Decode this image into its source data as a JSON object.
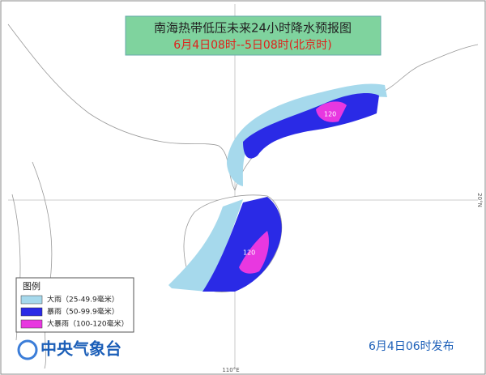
{
  "header": {
    "title": "南海热带低压未来24小时降水预报图",
    "subtitle": "6月4日08时--5日08时(北京时)"
  },
  "legend": {
    "title": "图例",
    "items": [
      {
        "label": "大雨（25-49.9毫米）",
        "color": "#a6d9ec"
      },
      {
        "label": "暴雨（50-99.9毫米）",
        "color": "#2a2ae6"
      },
      {
        "label": "大暴雨（100-120毫米）",
        "color": "#e838e0"
      }
    ]
  },
  "map": {
    "labels": [
      "120",
      "120"
    ],
    "lat_label": "20°N",
    "lon_label": "110°E"
  },
  "footer": {
    "agency": "中央气象台",
    "issued": "6月4日06时发布"
  }
}
